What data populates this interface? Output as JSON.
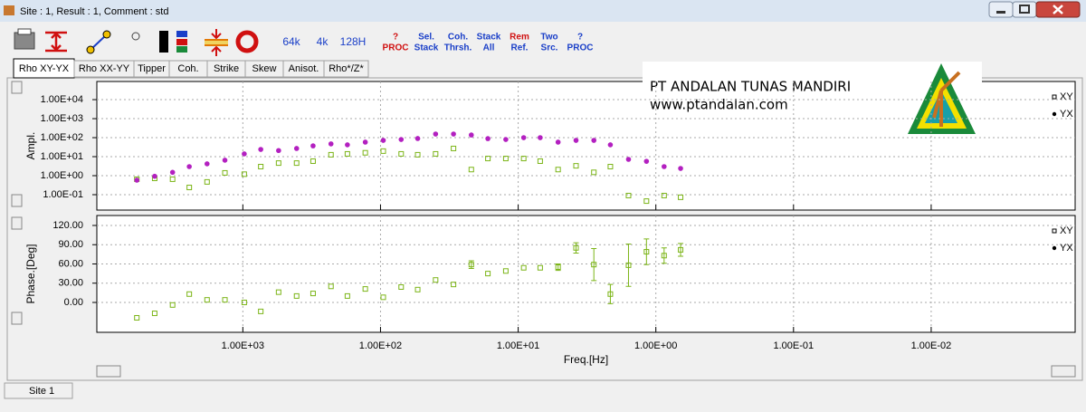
{
  "window": {
    "title": "Site : 1, Result : 1, Comment : std"
  },
  "toolbar": [
    {
      "lines": [
        "64k"
      ]
    },
    {
      "lines": [
        "4k"
      ]
    },
    {
      "lines": [
        "128H"
      ]
    },
    {
      "lines": [
        "?",
        "PROC"
      ]
    },
    {
      "lines": [
        "Sel.",
        "Stack"
      ]
    },
    {
      "lines": [
        "Coh.",
        "Thrsh."
      ]
    },
    {
      "lines": [
        "Stack",
        "All"
      ]
    },
    {
      "lines": [
        "Rem",
        "Ref."
      ]
    },
    {
      "lines": [
        "Two",
        "Src."
      ]
    },
    {
      "lines": [
        "?",
        "PROC"
      ]
    }
  ],
  "tabs": [
    "Rho XY-YX",
    "Rho XX-YY",
    "Tipper",
    "Coh.",
    "Strike",
    "Skew",
    "Anisot.",
    "Rho*/Z*"
  ],
  "logo": {
    "company": "PT ANDALAN TUNAS MANDIRI",
    "url": "www.ptandalan.com"
  },
  "status": {
    "site": "Site 1"
  },
  "chart_data": [
    {
      "type": "scatter",
      "ylabel": "Ampl.",
      "xlog": true,
      "ylog": true,
      "grid": true,
      "xlim": [
        11500,
        0.0009
      ],
      "ylim": [
        0.0155,
        90000
      ],
      "xticks": [
        1000,
        100,
        10,
        1,
        0.1,
        0.01
      ],
      "yticks": [
        {
          "value": 10000,
          "label": "1.00E+04"
        },
        {
          "value": 1000,
          "label": "1.00E+03"
        },
        {
          "value": 100,
          "label": "1.00E+02"
        },
        {
          "value": 10,
          "label": "1.00E+01"
        },
        {
          "value": 1,
          "label": "1.00E+00"
        },
        {
          "value": 0.1,
          "label": "1.00E-01"
        }
      ],
      "x": [
        5890,
        4370,
        3240,
        2450,
        1820,
        1350,
        977,
        741,
        550,
        407,
        309,
        229,
        174,
        129,
        95.5,
        70.8,
        53.7,
        39.8,
        29.5,
        21.9,
        16.6,
        12.3,
        9.12,
        6.92,
        5.13,
        3.8,
        2.82,
        2.14,
        1.58,
        1.17,
        0.871,
        0.661
      ],
      "series": [
        {
          "name": "XY",
          "marker": "square",
          "color": "#7cb518",
          "values": [
            0.65,
            0.72,
            0.65,
            0.24,
            0.47,
            1.4,
            1.2,
            3.0,
            4.6,
            4.6,
            5.8,
            12.6,
            14,
            16,
            19.6,
            14,
            12.6,
            14,
            27,
            2.1,
            8,
            8,
            8,
            5.8,
            2.1,
            3.3,
            1.5,
            3.0,
            0.09,
            0.046,
            0.09,
            0.073
          ]
        },
        {
          "name": "YX",
          "marker": "circle",
          "color": "#b320c0",
          "values": [
            0.58,
            0.93,
            1.5,
            3.0,
            4.2,
            6.5,
            14,
            24,
            21,
            27,
            37,
            47,
            42,
            58,
            72,
            80,
            90,
            155,
            155,
            138,
            89,
            80,
            100,
            100,
            58,
            72,
            72,
            42,
            7.2,
            5.7,
            3.0,
            2.4
          ]
        }
      ]
    },
    {
      "type": "scatter",
      "ylabel": "Phase.[Deg]",
      "xlabel": "Freq.[Hz]",
      "xlog": true,
      "ylog": false,
      "grid": true,
      "xlim": [
        11500,
        0.0009
      ],
      "ylim": [
        -46.6,
        135.5
      ],
      "xticks": [
        {
          "value": 1000,
          "label": "1.00E+03"
        },
        {
          "value": 100,
          "label": "1.00E+02"
        },
        {
          "value": 10,
          "label": "1.00E+01"
        },
        {
          "value": 1,
          "label": "1.00E+00"
        },
        {
          "value": 0.1,
          "label": "1.00E-01"
        },
        {
          "value": 0.01,
          "label": "1.00E-02"
        }
      ],
      "yticks": [
        {
          "value": 120,
          "label": "120.00"
        },
        {
          "value": 90,
          "label": "90.00"
        },
        {
          "value": 60,
          "label": "60.00"
        },
        {
          "value": 30,
          "label": "30.00"
        },
        {
          "value": 0,
          "label": "0.00"
        }
      ],
      "x": [
        5890,
        4370,
        3240,
        2450,
        1820,
        1350,
        977,
        741,
        550,
        407,
        309,
        229,
        174,
        129,
        95.5,
        70.8,
        53.7,
        39.8,
        29.5,
        21.9,
        16.6,
        12.3,
        9.12,
        6.92,
        5.13,
        3.8,
        2.82,
        2.14,
        1.58,
        1.17,
        0.871,
        0.661
      ],
      "series": [
        {
          "name": "XY",
          "marker": "square",
          "color": "#7cb518",
          "values": [
            -24,
            -17,
            -4,
            13,
            4,
            4,
            0,
            -14,
            16,
            10,
            14,
            25,
            10,
            21,
            8,
            24,
            20,
            35,
            28,
            59,
            45,
            49,
            54,
            54,
            55,
            85,
            59,
            13,
            58,
            79,
            73,
            82
          ],
          "errors": [
            null,
            null,
            null,
            null,
            null,
            null,
            null,
            null,
            null,
            null,
            null,
            null,
            null,
            null,
            null,
            null,
            null,
            null,
            null,
            6,
            null,
            null,
            null,
            null,
            5,
            8,
            25,
            15,
            33,
            20,
            12,
            10
          ]
        },
        {
          "name": "YX",
          "marker": "circle",
          "color": "#b320c0",
          "values": [
            null,
            null,
            null,
            null,
            null,
            null,
            null,
            null,
            null,
            null,
            null,
            null,
            null,
            null,
            null,
            null,
            null,
            null,
            null,
            null,
            null,
            null,
            null,
            null,
            null,
            null,
            null,
            null,
            null,
            null,
            null,
            null
          ]
        }
      ]
    }
  ]
}
